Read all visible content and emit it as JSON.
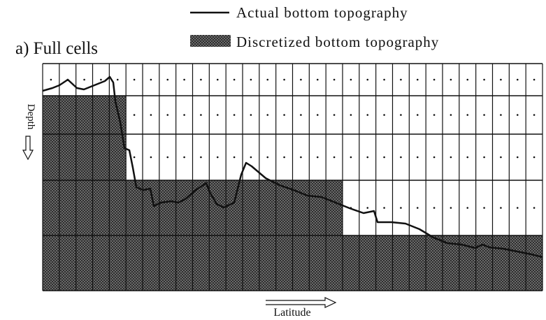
{
  "legend": [
    {
      "label": "Actual bottom topography"
    },
    {
      "label": "Discretized bottom topography"
    }
  ],
  "panel": {
    "title": "a) Full cells"
  },
  "axes": {
    "y_label": "Depth",
    "x_label": "Latitude"
  }
}
